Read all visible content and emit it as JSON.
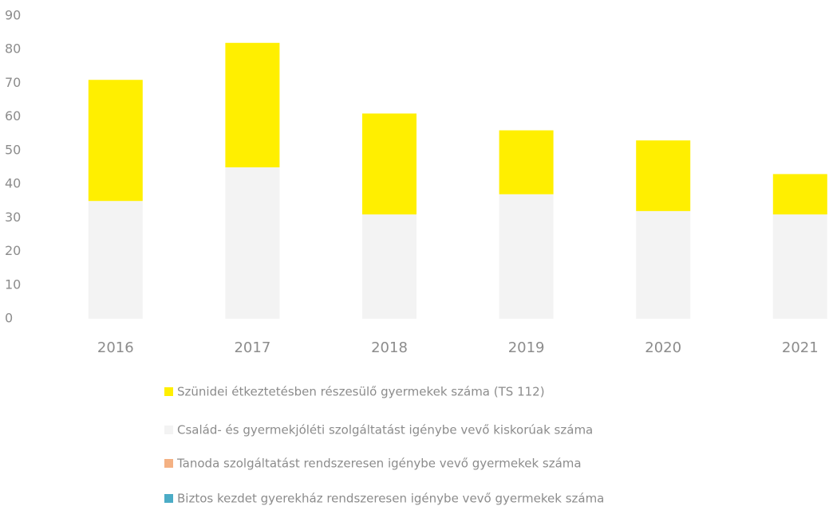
{
  "chart_data": {
    "type": "bar",
    "stacked": true,
    "categories": [
      "2016",
      "2017",
      "2018",
      "2019",
      "2020",
      "2021"
    ],
    "series": [
      {
        "name": "Biztos kezdet gyerekház rendszeresen igénybe vevő gyermekek száma",
        "color": "#4bacc6",
        "values": [
          0,
          0,
          0,
          0,
          0,
          0
        ]
      },
      {
        "name": "Tanoda szolgáltatást rendszeresen igénybe vevő gyermekek száma",
        "color": "#f4b183",
        "values": [
          0,
          0,
          0,
          0,
          0,
          0
        ]
      },
      {
        "name": "Család- és gyermekjóléti szolgáltatást igénybe vevő kiskorúak száma",
        "color": "#f3f3f3",
        "values": [
          35,
          45,
          31,
          37,
          32,
          31
        ]
      },
      {
        "name": "Szünidei étkeztetésben részesülő gyermekek száma (TS 112)",
        "color": "#ffef00",
        "values": [
          36,
          37,
          30,
          19,
          21,
          12
        ]
      }
    ],
    "ylim": [
      0,
      90
    ],
    "yticks": [
      0,
      10,
      20,
      30,
      40,
      50,
      60,
      70,
      80,
      90
    ],
    "grid": false,
    "legend": "bottom"
  }
}
